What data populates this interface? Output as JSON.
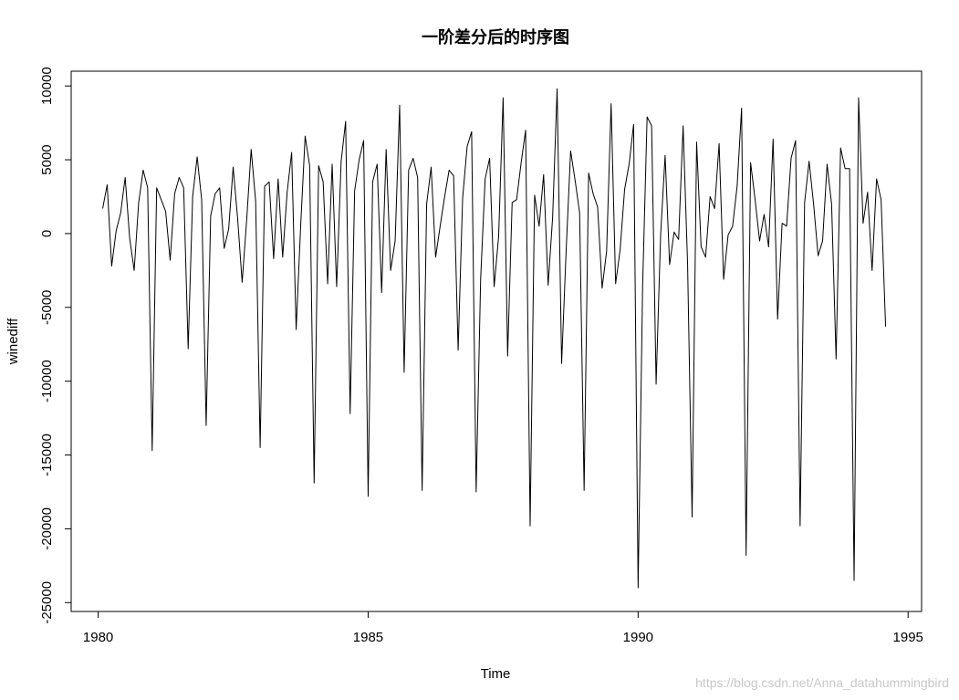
{
  "chart_data": {
    "type": "line",
    "title": "一阶差分后的时序图",
    "xlabel": "Time",
    "ylabel": "winediff",
    "xlim": [
      1979.5,
      1995.25
    ],
    "ylim": [
      -25600,
      11000
    ],
    "x_ticks": [
      1980,
      1985,
      1990,
      1995
    ],
    "y_ticks": [
      -25000,
      -20000,
      -15000,
      -10000,
      -5000,
      0,
      5000,
      10000
    ],
    "grid": false,
    "legend": "none",
    "series": [
      {
        "start": 1980.0833,
        "frequency": 12,
        "color": "#000000",
        "values": [
          1700,
          3300,
          -2200,
          200,
          1400,
          3800,
          -300,
          -2500,
          2100,
          4300,
          3100,
          -14700,
          3100,
          2300,
          1500,
          -1800,
          2700,
          3800,
          3100,
          -7800,
          2500,
          5200,
          2300,
          -13000,
          1200,
          2700,
          3100,
          -1000,
          300,
          4500,
          1000,
          -3300,
          900,
          5700,
          2200,
          -14500,
          3200,
          3500,
          -1700,
          3700,
          -1600,
          2800,
          5500,
          -6500,
          500,
          6600,
          4600,
          -16900,
          4600,
          3500,
          -3400,
          4700,
          -3600,
          4900,
          7600,
          -12200,
          2900,
          5000,
          6300,
          -17800,
          3500,
          4700,
          -4000,
          5700,
          -2500,
          -500,
          8700,
          -9400,
          4300,
          5100,
          3800,
          -17400,
          2000,
          4500,
          -1600,
          500,
          2500,
          4300,
          3900,
          -7900,
          2400,
          5900,
          6900,
          -17500,
          -3100,
          3700,
          5100,
          -3600,
          -200,
          9200,
          -8300,
          2100,
          2300,
          4800,
          7000,
          -19800,
          2600,
          500,
          4000,
          -3500,
          1100,
          9800,
          -8800,
          -1200,
          5600,
          3600,
          1400,
          -17400,
          4100,
          2700,
          1800,
          -3700,
          -1200,
          8800,
          -3400,
          -1100,
          3000,
          4700,
          7400,
          -24000,
          -3600,
          7900,
          7300,
          -10200,
          -100,
          5300,
          -2100,
          100,
          -400,
          7300,
          -2100,
          -19200,
          6200,
          -900,
          -1600,
          2500,
          1700,
          6100,
          -3100,
          -100,
          500,
          3200,
          8500,
          -21800,
          4800,
          2300,
          -500,
          1300,
          -900,
          6400,
          -5800,
          700,
          500,
          5100,
          6300,
          -19800,
          2100,
          4900,
          2000,
          -1500,
          -500,
          4700,
          2000,
          -8500,
          5800,
          4400,
          4400,
          -23500,
          9200,
          700,
          2800,
          -2500,
          3700,
          2300,
          -6300
        ]
      }
    ]
  },
  "watermark": "https://blog.csdn.net/Anna_datahummingbird"
}
